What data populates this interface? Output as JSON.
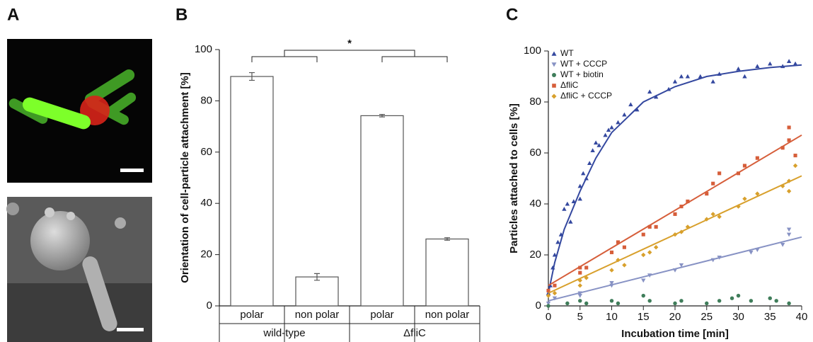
{
  "chart_data": [
    {
      "type": "image-panel",
      "panel_label": "A"
    },
    {
      "type": "bar",
      "panel_label": "B",
      "ylabel": "Orientation of cell-particle attachment [%]",
      "categories": [
        "polar",
        "non polar",
        "polar",
        "non polar"
      ],
      "groups": [
        "wild-type",
        "ΔfliC"
      ],
      "values": [
        89.5,
        11.3,
        74.2,
        26.1
      ],
      "errors": [
        1.5,
        1.3,
        0.5,
        0.5
      ],
      "ylim": [
        0,
        100
      ],
      "yticks": [
        0,
        20,
        40,
        60,
        80,
        100
      ],
      "annotation": "*",
      "color": "#ffffff"
    },
    {
      "type": "scatter",
      "panel_label": "C",
      "xlabel": "Incubation time [min]",
      "ylabel": "Particles attached to cells [%]",
      "xlim": [
        0,
        40
      ],
      "xticks": [
        0,
        5,
        10,
        15,
        20,
        25,
        30,
        35,
        40
      ],
      "ylim": [
        0,
        100
      ],
      "yticks": [
        0,
        20,
        40,
        60,
        80,
        100
      ],
      "legend": "top-left",
      "series": [
        {
          "name": "WT",
          "color": "#34489f",
          "marker": "triangle-up",
          "x": [
            0,
            0.3,
            0.7,
            1,
            1.5,
            2,
            2.5,
            3,
            3.5,
            4,
            5,
            5,
            5.5,
            6,
            6.5,
            7,
            7.5,
            8,
            9,
            9.5,
            10,
            11,
            12,
            13,
            14,
            16,
            17,
            19,
            20,
            21,
            22,
            24,
            26,
            27,
            30,
            31,
            33,
            35,
            37,
            38,
            39
          ],
          "values": [
            5,
            8,
            15,
            20,
            25,
            28,
            38,
            40,
            33,
            41,
            47,
            42,
            52,
            50,
            56,
            61,
            64,
            63,
            67,
            69,
            70,
            72,
            75,
            79,
            77,
            84,
            82,
            85,
            88,
            90,
            90,
            90,
            88,
            91,
            93,
            90,
            94,
            95,
            94,
            96,
            95
          ],
          "fit_x": [
            0,
            1,
            2.5,
            5,
            7.5,
            10,
            15,
            20,
            25,
            30,
            35,
            40
          ],
          "fit_values": [
            5,
            17,
            30,
            45,
            58,
            68,
            80,
            86,
            90,
            92,
            93.5,
            94.5
          ]
        },
        {
          "name": "WT + CCCP",
          "color": "#8792c4",
          "marker": "triangle-down",
          "x": [
            0,
            1,
            5,
            5,
            10,
            10,
            15,
            16,
            20,
            21,
            26,
            27,
            32,
            33,
            37,
            38,
            38
          ],
          "values": [
            1,
            3,
            4,
            5,
            8,
            9,
            10,
            12,
            14,
            16,
            18,
            19,
            21,
            22,
            24,
            30,
            28
          ],
          "fit_x": [
            0,
            40
          ],
          "fit_values": [
            2,
            27
          ]
        },
        {
          "name": "WT + biotin",
          "color": "#3f7d5a",
          "marker": "circle",
          "x": [
            0,
            3,
            5,
            6,
            10,
            11,
            15,
            16,
            20,
            21,
            25,
            27,
            29,
            30,
            32,
            35,
            36,
            38
          ],
          "values": [
            0,
            1,
            2,
            1,
            2,
            1,
            4,
            2,
            1,
            2,
            1,
            2,
            3,
            4,
            2,
            3,
            2,
            1
          ]
        },
        {
          "name": "ΔfliC",
          "color": "#d65e3a",
          "marker": "square",
          "x": [
            0,
            1,
            5,
            5,
            6,
            10,
            11,
            12,
            15,
            16,
            17,
            20,
            21,
            22,
            25,
            26,
            27,
            30,
            31,
            33,
            37,
            38,
            38,
            39
          ],
          "values": [
            6,
            8,
            13,
            15,
            15,
            21,
            25,
            23,
            28,
            31,
            31,
            36,
            39,
            41,
            44,
            48,
            52,
            52,
            55,
            58,
            62,
            70,
            65,
            59
          ],
          "fit_x": [
            0,
            40
          ],
          "fit_values": [
            8,
            67
          ]
        },
        {
          "name": "ΔfliC + CCCP",
          "color": "#d8a02c",
          "marker": "diamond",
          "x": [
            0,
            1,
            5,
            5,
            6,
            10,
            11,
            12,
            15,
            16,
            17,
            20,
            21,
            22,
            25,
            26,
            27,
            30,
            31,
            33,
            37,
            38,
            38,
            39
          ],
          "values": [
            4,
            5,
            8,
            10,
            11,
            14,
            18,
            16,
            20,
            21,
            23,
            28,
            29,
            31,
            34,
            36,
            35,
            39,
            42,
            44,
            47,
            49,
            45,
            55
          ],
          "fit_x": [
            0,
            40
          ],
          "fit_values": [
            5,
            51
          ]
        }
      ]
    }
  ]
}
